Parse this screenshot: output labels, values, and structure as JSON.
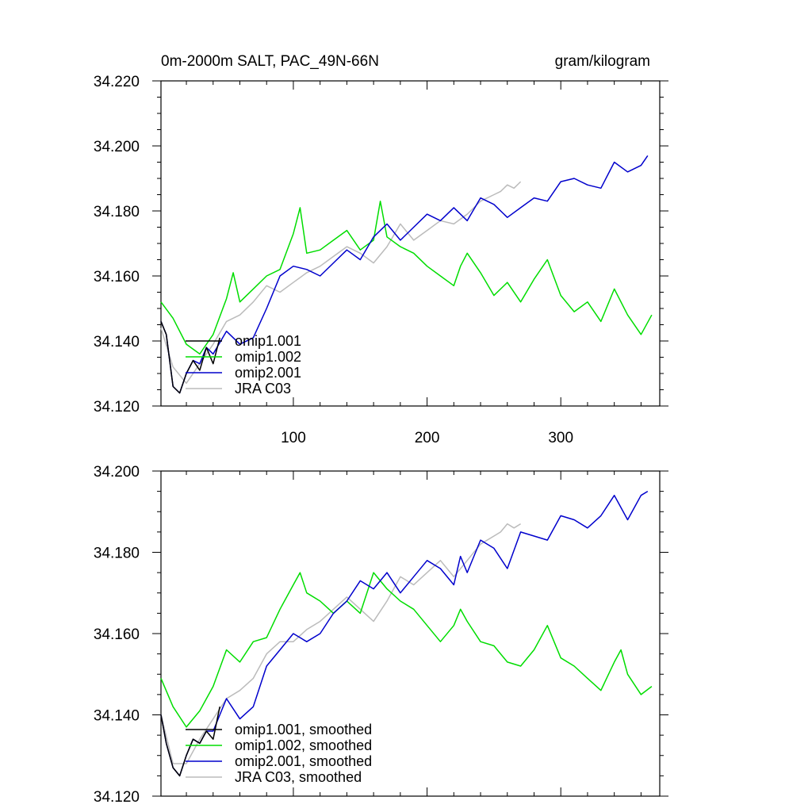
{
  "colors": {
    "omip1_001": "#000000",
    "omip1_002": "#00dd00",
    "omip2_001": "#0000cc",
    "jra_c03": "#bbbbbb"
  },
  "chart_data": [
    {
      "type": "line",
      "title": "0m-2000m SALT, PAC_49N-66N",
      "units": "gram/kilogram",
      "xlim": [
        1,
        374
      ],
      "ylim": [
        34.12,
        34.22
      ],
      "xticks": [
        100,
        200,
        300
      ],
      "xtick_labels": [
        "100",
        "200",
        "300"
      ],
      "yticks": [
        34.12,
        34.14,
        34.16,
        34.18,
        34.2,
        34.22
      ],
      "ytick_labels": [
        "34.120",
        "34.140",
        "34.160",
        "34.180",
        "34.200",
        "34.220"
      ],
      "legend_position": "bottom-left",
      "legend": [
        "omip1.001",
        "omip1.002",
        "omip2.001",
        "JRA C03"
      ],
      "series": [
        {
          "name": "omip1.001",
          "color_key": "omip1_001",
          "x": [
            1,
            5,
            10,
            15,
            20,
            25,
            30,
            35,
            40,
            45
          ],
          "y": [
            34.146,
            34.142,
            34.126,
            34.124,
            34.13,
            34.134,
            34.131,
            34.138,
            34.133,
            34.141
          ]
        },
        {
          "name": "omip1.002",
          "color_key": "omip1_002",
          "x": [
            1,
            10,
            20,
            30,
            40,
            50,
            55,
            60,
            70,
            80,
            90,
            100,
            105,
            110,
            120,
            130,
            140,
            150,
            160,
            165,
            170,
            180,
            190,
            200,
            210,
            220,
            225,
            230,
            240,
            250,
            260,
            270,
            280,
            290,
            300,
            310,
            320,
            330,
            340,
            350,
            360,
            368
          ],
          "y": [
            34.152,
            34.147,
            34.139,
            34.136,
            34.142,
            34.153,
            34.161,
            34.152,
            34.156,
            34.16,
            34.162,
            34.173,
            34.181,
            34.167,
            34.168,
            34.171,
            34.174,
            34.168,
            34.171,
            34.183,
            34.172,
            34.169,
            34.167,
            34.163,
            34.16,
            34.157,
            34.163,
            34.167,
            34.161,
            34.154,
            34.158,
            34.152,
            34.159,
            34.165,
            34.154,
            34.149,
            34.152,
            34.146,
            34.156,
            34.148,
            34.142,
            34.148
          ]
        },
        {
          "name": "omip2.001",
          "color_key": "omip2_001",
          "x": [
            1,
            5,
            10,
            15,
            20,
            25,
            30,
            35,
            40,
            50,
            60,
            70,
            80,
            90,
            100,
            110,
            120,
            130,
            140,
            150,
            160,
            170,
            180,
            190,
            200,
            210,
            220,
            230,
            240,
            250,
            260,
            270,
            280,
            290,
            300,
            310,
            320,
            330,
            340,
            350,
            360,
            365
          ],
          "y": [
            34.146,
            34.142,
            34.126,
            34.124,
            34.13,
            34.134,
            34.133,
            34.138,
            34.136,
            34.143,
            34.139,
            34.141,
            34.15,
            34.16,
            34.163,
            34.162,
            34.16,
            34.164,
            34.168,
            34.165,
            34.172,
            34.176,
            34.171,
            34.175,
            34.179,
            34.177,
            34.181,
            34.177,
            34.184,
            34.182,
            34.178,
            34.181,
            34.184,
            34.183,
            34.189,
            34.19,
            34.188,
            34.187,
            34.195,
            34.192,
            34.194,
            34.197
          ]
        },
        {
          "name": "JRA C03",
          "color_key": "jra_c03",
          "x": [
            1,
            10,
            20,
            30,
            40,
            50,
            60,
            70,
            80,
            90,
            100,
            110,
            120,
            130,
            140,
            150,
            160,
            170,
            180,
            190,
            200,
            210,
            220,
            230,
            240,
            250,
            255,
            260,
            265,
            270
          ],
          "y": [
            34.144,
            34.132,
            34.127,
            34.133,
            34.139,
            34.146,
            34.148,
            34.152,
            34.157,
            34.155,
            34.158,
            34.161,
            34.163,
            34.166,
            34.169,
            34.167,
            34.164,
            34.169,
            34.176,
            34.171,
            34.174,
            34.177,
            34.176,
            34.179,
            34.183,
            34.185,
            34.186,
            34.188,
            34.187,
            34.189
          ]
        }
      ]
    },
    {
      "type": "line",
      "title": "",
      "units": "",
      "xlim": [
        1,
        374
      ],
      "ylim": [
        34.12,
        34.2
      ],
      "xticks": [
        100,
        200,
        300
      ],
      "xtick_labels": [],
      "yticks": [
        34.12,
        34.14,
        34.16,
        34.18,
        34.2
      ],
      "ytick_labels": [
        "34.120",
        "34.140",
        "34.160",
        "34.180",
        "34.200"
      ],
      "legend_position": "bottom-left",
      "legend": [
        "omip1.001, smoothed",
        "omip1.002, smoothed",
        "omip2.001, smoothed",
        "JRA C03, smoothed"
      ],
      "series": [
        {
          "name": "omip1.001, smoothed",
          "color_key": "omip1_001",
          "x": [
            1,
            5,
            10,
            15,
            20,
            25,
            30,
            35,
            40,
            45
          ],
          "y": [
            34.14,
            34.133,
            34.127,
            34.125,
            34.13,
            34.134,
            34.133,
            34.136,
            34.134,
            34.142
          ]
        },
        {
          "name": "omip1.002, smoothed",
          "color_key": "omip1_002",
          "x": [
            1,
            10,
            20,
            30,
            40,
            50,
            60,
            70,
            80,
            90,
            100,
            105,
            110,
            120,
            130,
            140,
            150,
            160,
            170,
            180,
            190,
            200,
            210,
            220,
            225,
            230,
            240,
            250,
            260,
            270,
            280,
            290,
            300,
            310,
            320,
            330,
            340,
            345,
            350,
            360,
            368
          ],
          "y": [
            34.149,
            34.142,
            34.137,
            34.141,
            34.147,
            34.156,
            34.153,
            34.158,
            34.159,
            34.166,
            34.172,
            34.175,
            34.17,
            34.168,
            34.165,
            34.168,
            34.165,
            34.175,
            34.171,
            34.168,
            34.166,
            34.162,
            34.158,
            34.162,
            34.166,
            34.163,
            34.158,
            34.157,
            34.153,
            34.152,
            34.156,
            34.162,
            34.154,
            34.152,
            34.149,
            34.146,
            34.153,
            34.156,
            34.15,
            34.145,
            34.147
          ]
        },
        {
          "name": "omip2.001, smoothed",
          "color_key": "omip2_001",
          "x": [
            1,
            5,
            10,
            15,
            20,
            25,
            30,
            35,
            40,
            50,
            60,
            70,
            80,
            90,
            100,
            110,
            120,
            130,
            140,
            150,
            160,
            170,
            180,
            190,
            200,
            210,
            220,
            225,
            230,
            240,
            250,
            260,
            270,
            280,
            290,
            300,
            310,
            320,
            330,
            340,
            350,
            360,
            365
          ],
          "y": [
            34.14,
            34.133,
            34.127,
            34.125,
            34.13,
            34.134,
            34.133,
            34.136,
            34.136,
            34.144,
            34.139,
            34.142,
            34.152,
            34.156,
            34.16,
            34.158,
            34.16,
            34.165,
            34.168,
            34.173,
            34.171,
            34.175,
            34.17,
            34.174,
            34.178,
            34.176,
            34.172,
            34.179,
            34.175,
            34.183,
            34.181,
            34.176,
            34.185,
            34.184,
            34.183,
            34.189,
            34.188,
            34.186,
            34.189,
            34.194,
            34.188,
            34.194,
            34.195
          ]
        },
        {
          "name": "JRA C03, smoothed",
          "color_key": "jra_c03",
          "x": [
            1,
            10,
            20,
            30,
            40,
            50,
            60,
            70,
            80,
            90,
            100,
            110,
            120,
            130,
            140,
            150,
            160,
            170,
            180,
            190,
            200,
            210,
            220,
            230,
            240,
            250,
            255,
            260,
            265,
            270
          ],
          "y": [
            34.14,
            34.128,
            34.128,
            34.134,
            34.139,
            34.144,
            34.146,
            34.149,
            34.155,
            34.158,
            34.158,
            34.161,
            34.163,
            34.166,
            34.169,
            34.166,
            34.163,
            34.168,
            34.174,
            34.172,
            34.175,
            34.178,
            34.174,
            34.178,
            34.182,
            34.184,
            34.185,
            34.187,
            34.186,
            34.187
          ]
        }
      ]
    }
  ]
}
